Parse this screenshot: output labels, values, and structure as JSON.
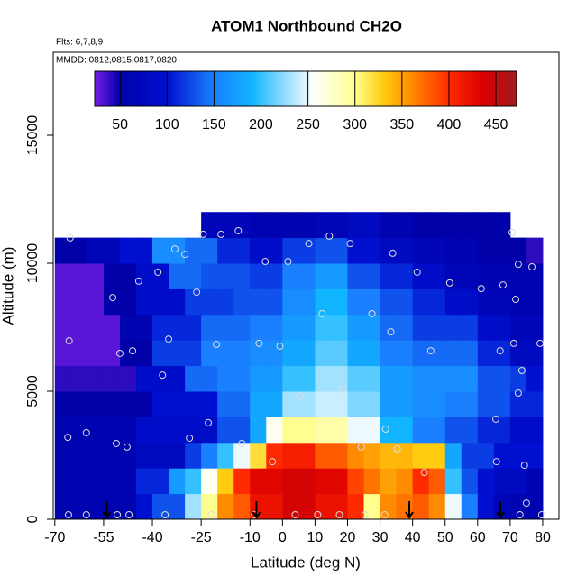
{
  "chart_data": {
    "type": "heatmap",
    "title": "ATOM1 Northbound CH2O",
    "notes": [
      "Flts: 6,7,8,9",
      "MMDD: 0812,0815,0817,0820"
    ],
    "x_label": "Latitude (deg N)",
    "y_label": "Altitude (m)",
    "xlim": [
      -70.5,
      85
    ],
    "ylim": [
      0,
      18240
    ],
    "xticks": [
      -70,
      -55,
      -40,
      -25,
      -10,
      0,
      10,
      20,
      30,
      40,
      50,
      60,
      70,
      80
    ],
    "yticks": [
      0,
      5000,
      10000,
      15000
    ],
    "x_edges": [
      -70,
      -65,
      -60,
      -55,
      -50,
      -45,
      -40,
      -35,
      -30,
      -25,
      -20,
      -15,
      -10,
      -5,
      0,
      5,
      10,
      15,
      20,
      25,
      30,
      35,
      40,
      45,
      50,
      55,
      60,
      65,
      70,
      75,
      80,
      85
    ],
    "y_edges": [
      0,
      1000,
      2000,
      3000,
      4000,
      5000,
      6000,
      7000,
      8000,
      9000,
      10000,
      11000,
      12000
    ],
    "values": [
      [
        60,
        60,
        60,
        60,
        60,
        100,
        130,
        130,
        230,
        300,
        360,
        380,
        420,
        420,
        440,
        440,
        420,
        420,
        400,
        300,
        360,
        370,
        380,
        360,
        250,
        150,
        100,
        70,
        60,
        60,
        null
      ],
      [
        60,
        60,
        60,
        60,
        60,
        110,
        110,
        170,
        200,
        260,
        330,
        400,
        430,
        430,
        440,
        440,
        430,
        430,
        390,
        370,
        350,
        360,
        400,
        380,
        200,
        130,
        100,
        80,
        80,
        60,
        null
      ],
      [
        60,
        60,
        60,
        60,
        60,
        80,
        80,
        80,
        120,
        150,
        200,
        250,
        320,
        400,
        410,
        410,
        380,
        380,
        360,
        350,
        340,
        340,
        330,
        330,
        180,
        120,
        120,
        100,
        100,
        100,
        null
      ],
      [
        60,
        60,
        60,
        60,
        60,
        90,
        90,
        90,
        90,
        90,
        130,
        130,
        180,
        260,
        300,
        300,
        290,
        290,
        250,
        250,
        190,
        190,
        150,
        150,
        130,
        130,
        110,
        110,
        90,
        90,
        null
      ],
      [
        50,
        50,
        50,
        50,
        50,
        50,
        100,
        100,
        100,
        100,
        140,
        140,
        180,
        180,
        230,
        230,
        240,
        240,
        220,
        220,
        170,
        170,
        160,
        160,
        150,
        150,
        130,
        130,
        110,
        110,
        null
      ],
      [
        40,
        40,
        40,
        40,
        40,
        90,
        90,
        90,
        140,
        140,
        150,
        150,
        170,
        170,
        200,
        200,
        230,
        230,
        210,
        210,
        170,
        170,
        160,
        160,
        160,
        160,
        130,
        130,
        120,
        100,
        null
      ],
      [
        30,
        30,
        30,
        30,
        50,
        50,
        120,
        120,
        120,
        150,
        150,
        150,
        160,
        160,
        180,
        180,
        210,
        210,
        180,
        180,
        150,
        150,
        140,
        140,
        140,
        140,
        110,
        110,
        80,
        80,
        null
      ],
      [
        30,
        30,
        30,
        30,
        60,
        60,
        110,
        110,
        110,
        140,
        140,
        140,
        150,
        150,
        170,
        170,
        200,
        200,
        170,
        170,
        140,
        140,
        120,
        120,
        120,
        120,
        90,
        90,
        70,
        70,
        null
      ],
      [
        30,
        30,
        30,
        50,
        50,
        90,
        90,
        90,
        120,
        120,
        120,
        130,
        130,
        130,
        160,
        160,
        190,
        190,
        150,
        150,
        130,
        130,
        110,
        110,
        90,
        90,
        70,
        70,
        60,
        60,
        null
      ],
      [
        30,
        30,
        30,
        50,
        50,
        90,
        90,
        140,
        140,
        130,
        130,
        130,
        120,
        120,
        150,
        150,
        170,
        170,
        130,
        130,
        110,
        110,
        90,
        90,
        70,
        70,
        60,
        60,
        60,
        60,
        null
      ],
      [
        50,
        50,
        70,
        70,
        100,
        100,
        160,
        160,
        140,
        140,
        110,
        110,
        90,
        90,
        120,
        120,
        130,
        130,
        100,
        100,
        80,
        80,
        70,
        70,
        60,
        60,
        50,
        50,
        50,
        40,
        null
      ],
      [
        null,
        null,
        null,
        null,
        null,
        null,
        null,
        null,
        null,
        70,
        70,
        70,
        60,
        60,
        60,
        60,
        70,
        70,
        80,
        80,
        60,
        60,
        50,
        50,
        50,
        50,
        50,
        50,
        null,
        null,
        null
      ]
    ],
    "zlim": [
      23,
      472
    ],
    "zticks": [
      50,
      100,
      150,
      200,
      250,
      300,
      350,
      400,
      450
    ],
    "colormap": [
      {
        "value": 23,
        "color": "#7a1ee6"
      },
      {
        "value": 50,
        "color": "#0000a8"
      },
      {
        "value": 100,
        "color": "#0010d0"
      },
      {
        "value": 150,
        "color": "#1a80ff"
      },
      {
        "value": 190,
        "color": "#10b4ff"
      },
      {
        "value": 255,
        "color": "#ffffff"
      },
      {
        "value": 300,
        "color": "#ffff90"
      },
      {
        "value": 330,
        "color": "#ffcc10"
      },
      {
        "value": 360,
        "color": "#ff8c00"
      },
      {
        "value": 400,
        "color": "#ff2a00"
      },
      {
        "value": 435,
        "color": "#dc0000"
      },
      {
        "value": 472,
        "color": "#a01c1c"
      }
    ],
    "points": {
      "x": [
        -65.3,
        -60.3,
        -66,
        -65.6,
        -52.2,
        -51.1,
        -47.8,
        -50,
        -46.1,
        -44.2,
        -38.3,
        -36.9,
        -35,
        -33.1,
        -30,
        -28.6,
        -26.4,
        -22.8,
        -20.3,
        -24.4,
        -18.9,
        -13.6,
        -12.5,
        -7.2,
        -5.3,
        -3.1,
        -0.8,
        1.7,
        5.3,
        8.1,
        12.2,
        14.4,
        18.6,
        20.8,
        24.2,
        27.5,
        31.7,
        33.3,
        33.9,
        35.3,
        41.4,
        43.6,
        45.6,
        51.4,
        61.1,
        65.6,
        65.8,
        66.9,
        67.8,
        70.6,
        71.1,
        71.7,
        72.5,
        72.5,
        73.6,
        74.4,
        75,
        76.7,
        79.2,
        -65.8,
        -60.3,
        -50.8,
        -47.2,
        -36.1,
        -21.9,
        -8.6,
        3.9,
        10.8,
        17.5,
        25.3,
        31.4,
        73,
        79.7
      ],
      "y": [
        10990,
        3380,
        3200,
        6970,
        8660,
        2960,
        2820,
        6480,
        6580,
        9300,
        9650,
        5630,
        7040,
        10560,
        10350,
        3170,
        8870,
        3770,
        6830,
        11130,
        11130,
        11270,
        2960,
        6870,
        10070,
        2250,
        6760,
        10070,
        4790,
        10770,
        8030,
        11060,
        5070,
        10770,
        2820,
        8030,
        3520,
        7320,
        10390,
        2750,
        9650,
        1830,
        6580,
        9230,
        9010,
        3910,
        2250,
        6580,
        9150,
        11200,
        6870,
        8590,
        9960,
        4930,
        5810,
        2110,
        630,
        9860,
        6870,
        176,
        176,
        176,
        176,
        176,
        176,
        176,
        176,
        176,
        176,
        176,
        176,
        176,
        176
      ]
    },
    "arrows_lat": [
      -54,
      -8,
      39,
      67
    ]
  }
}
